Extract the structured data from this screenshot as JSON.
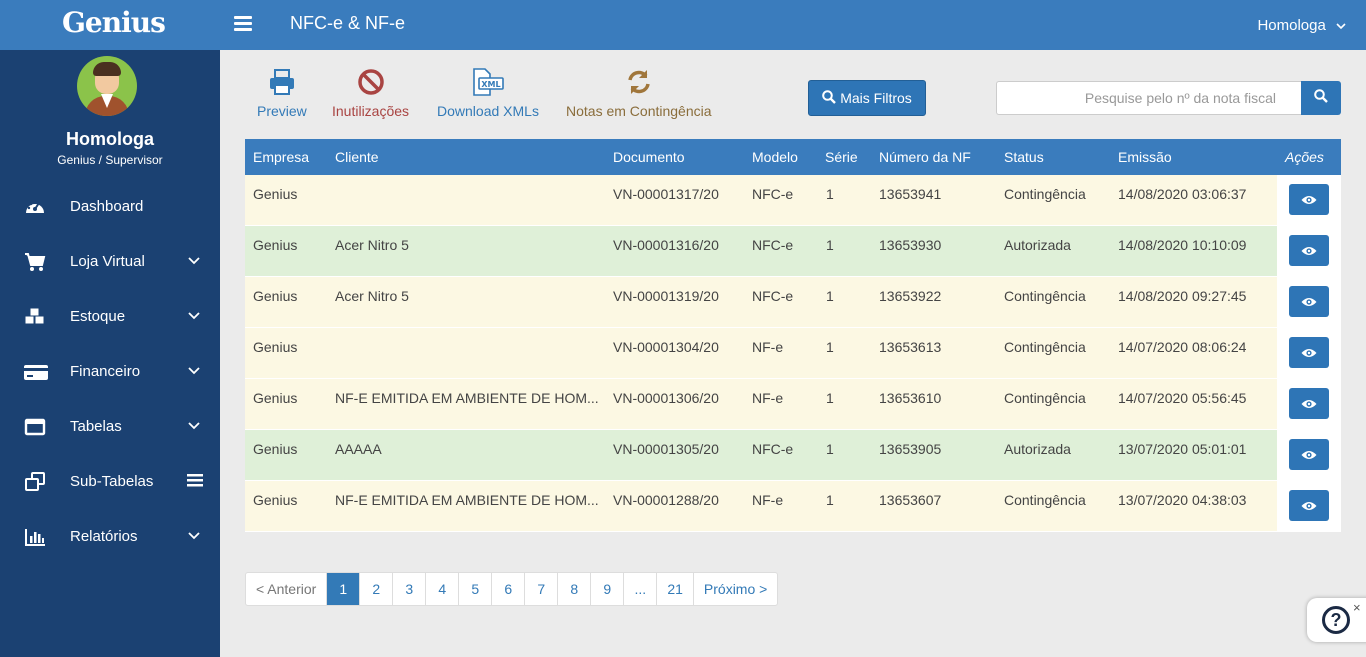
{
  "header": {
    "logo_text": "Genius",
    "page_title": "NFC-e & NF-e",
    "user_menu": "Homologa"
  },
  "sidebar": {
    "user_name": "Homologa",
    "user_role": "Genius / Supervisor",
    "items": [
      {
        "label": "Dashboard",
        "icon": "dashboard-icon"
      },
      {
        "label": "Loja Virtual",
        "icon": "cart-icon"
      },
      {
        "label": "Estoque",
        "icon": "boxes-icon"
      },
      {
        "label": "Financeiro",
        "icon": "credit-card-icon"
      },
      {
        "label": "Tabelas",
        "icon": "window-icon"
      },
      {
        "label": "Sub-Tabelas",
        "icon": "clone-icon"
      },
      {
        "label": "Relatórios",
        "icon": "bar-chart-icon"
      }
    ]
  },
  "toolbar": {
    "preview": "Preview",
    "inutilizacoes": "Inutilizações",
    "download_xmls": "Download XMLs",
    "notas_contingencia": "Notas em Contingência",
    "mais_filtros": "Mais Filtros",
    "search_placeholder": "Pesquise pelo nº da nota fiscal"
  },
  "table": {
    "headers": [
      "Empresa",
      "Cliente",
      "Documento",
      "Modelo",
      "Série",
      "Número da NF",
      "Status",
      "Emissão",
      "Ações"
    ],
    "rows": [
      {
        "empresa": "Genius",
        "cliente": "",
        "documento": "VN-00001317/20",
        "modelo": "NFC-e",
        "serie": "1",
        "numero": "13653941",
        "status": "Contingência",
        "emissao": "14/08/2020 03:06:37"
      },
      {
        "empresa": "Genius",
        "cliente": "Acer Nitro 5",
        "documento": "VN-00001316/20",
        "modelo": "NFC-e",
        "serie": "1",
        "numero": "13653930",
        "status": "Autorizada",
        "emissao": "14/08/2020 10:10:09"
      },
      {
        "empresa": "Genius",
        "cliente": "Acer Nitro 5",
        "documento": "VN-00001319/20",
        "modelo": "NFC-e",
        "serie": "1",
        "numero": "13653922",
        "status": "Contingência",
        "emissao": "14/08/2020 09:27:45"
      },
      {
        "empresa": "Genius",
        "cliente": "",
        "documento": "VN-00001304/20",
        "modelo": "NF-e",
        "serie": "1",
        "numero": "13653613",
        "status": "Contingência",
        "emissao": "14/07/2020 08:06:24"
      },
      {
        "empresa": "Genius",
        "cliente": "NF-E EMITIDA EM AMBIENTE DE HOM...",
        "documento": "VN-00001306/20",
        "modelo": "NF-e",
        "serie": "1",
        "numero": "13653610",
        "status": "Contingência",
        "emissao": "14/07/2020 05:56:45"
      },
      {
        "empresa": "Genius",
        "cliente": "AAAAA",
        "documento": "VN-00001305/20",
        "modelo": "NFC-e",
        "serie": "1",
        "numero": "13653905",
        "status": "Autorizada",
        "emissao": "13/07/2020 05:01:01"
      },
      {
        "empresa": "Genius",
        "cliente": "NF-E EMITIDA EM AMBIENTE DE HOM...",
        "documento": "VN-00001288/20",
        "modelo": "NF-e",
        "serie": "1",
        "numero": "13653607",
        "status": "Contingência",
        "emissao": "13/07/2020 04:38:03"
      }
    ]
  },
  "pagination": {
    "prev": "< Anterior",
    "pages": [
      "1",
      "2",
      "3",
      "4",
      "5",
      "6",
      "7",
      "8",
      "9",
      "...",
      "21"
    ],
    "next": "Próximo >",
    "active": "1"
  },
  "help": {
    "label": "?",
    "close": "×"
  },
  "colors": {
    "header": "#3a7cbd",
    "sidebar": "#1b4172",
    "contingencia_row": "#fcf8e3",
    "autorizada_row": "#dff0d8",
    "primary_button": "#2e75b6"
  }
}
